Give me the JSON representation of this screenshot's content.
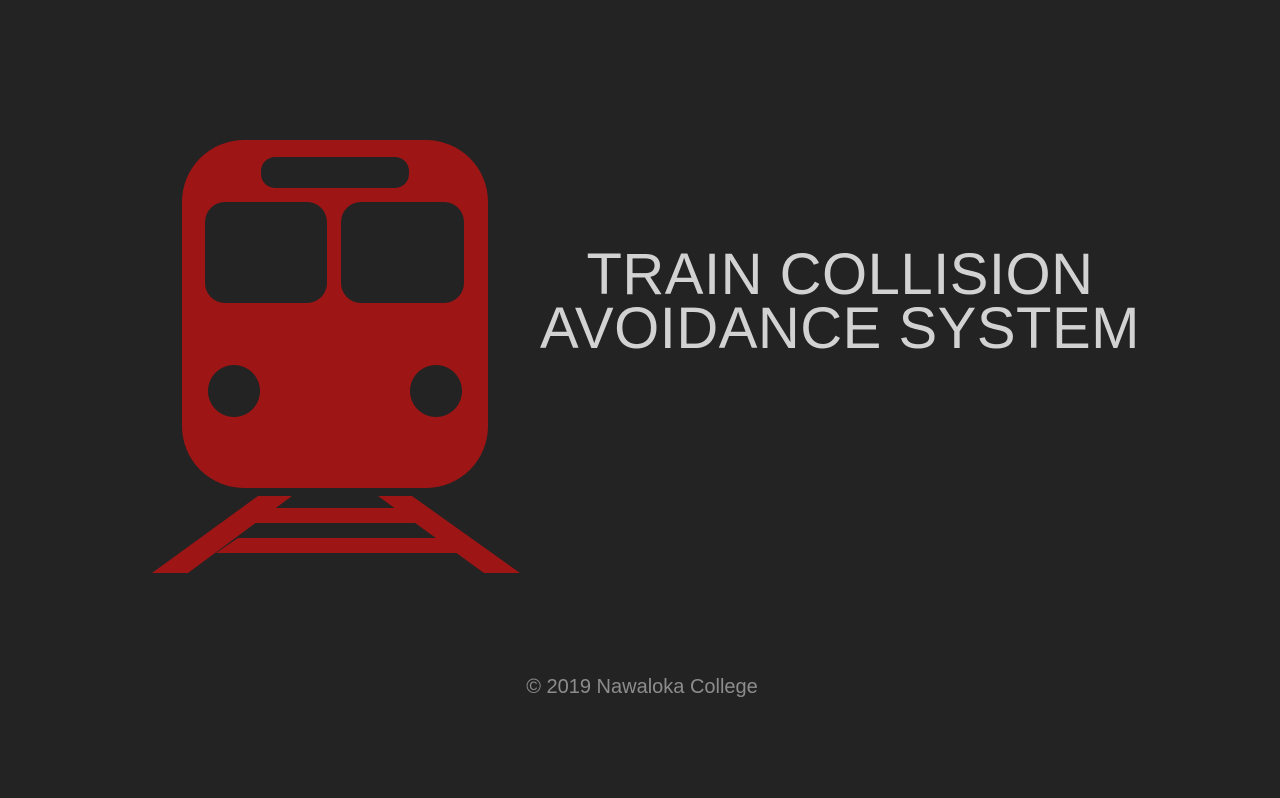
{
  "app": {
    "title_line1": "TRAIN COLLISION",
    "title_line2": "AVOIDANCE SYSTEM",
    "footer": "© 2019 Nawaloka College"
  },
  "logo": {
    "icon": "train-front-icon",
    "color": "#9e1515"
  },
  "theme": {
    "background": "#232323",
    "title_color": "#d2d2d2",
    "footer_color": "#8c8c8c"
  }
}
